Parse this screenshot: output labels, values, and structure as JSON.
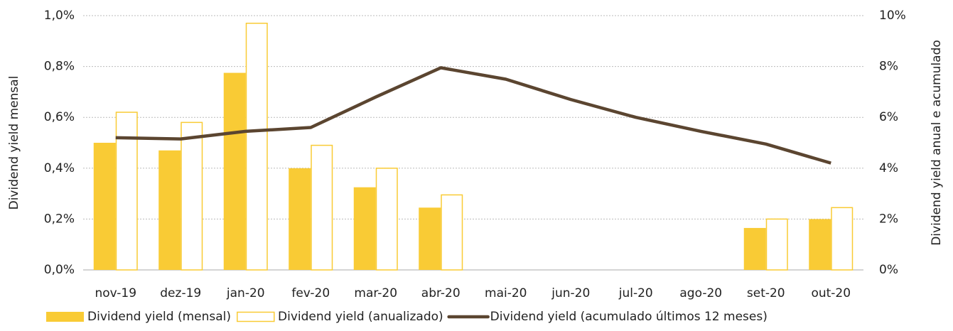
{
  "chart_data": {
    "type": "bar",
    "y_label": "Dividend yield mensal",
    "y2_label": "Dividend yield anual e acumulado",
    "categories": [
      "nov-19",
      "dez-19",
      "jan-20",
      "fev-20",
      "mar-20",
      "abr-20",
      "mai-20",
      "jun-20",
      "jul-20",
      "ago-20",
      "set-20",
      "out-20"
    ],
    "series": [
      {
        "name": "Dividend yield (mensal)",
        "type": "bar",
        "style": "filled",
        "color": "#F9CB35",
        "values": [
          0.5,
          0.47,
          0.775,
          0.4,
          0.325,
          0.245,
          null,
          null,
          null,
          null,
          0.165,
          0.2
        ]
      },
      {
        "name": "Dividend yield (anualizado)",
        "type": "bar",
        "style": "outline",
        "color": "#F9CB35",
        "axis": "y2",
        "values": [
          6.2,
          5.8,
          9.7,
          4.9,
          4.0,
          2.95,
          null,
          null,
          null,
          null,
          2.0,
          2.45
        ]
      },
      {
        "name": "Dividend yield (acumulado últimos 12 meses)",
        "type": "line",
        "color": "#5B4530",
        "axis": "y2",
        "values": [
          5.2,
          5.15,
          5.45,
          5.6,
          6.8,
          7.95,
          7.5,
          6.7,
          6.0,
          5.45,
          4.95,
          4.2
        ]
      }
    ],
    "ylim": [
      0,
      1.0
    ],
    "yticks": [
      {
        "value": 0,
        "label": "0,0%"
      },
      {
        "value": 0.2,
        "label": "0,2%"
      },
      {
        "value": 0.4,
        "label": "0,4%"
      },
      {
        "value": 0.6,
        "label": "0,6%"
      },
      {
        "value": 0.8,
        "label": "0,8%"
      },
      {
        "value": 1.0,
        "label": "1,0%"
      }
    ],
    "y2lim": [
      0,
      10
    ],
    "y2ticks": [
      {
        "value": 0,
        "label": "0%"
      },
      {
        "value": 2,
        "label": "2%"
      },
      {
        "value": 4,
        "label": "4%"
      },
      {
        "value": 6,
        "label": "6%"
      },
      {
        "value": 8,
        "label": "8%"
      },
      {
        "value": 10,
        "label": "10%"
      }
    ],
    "grid": true
  }
}
